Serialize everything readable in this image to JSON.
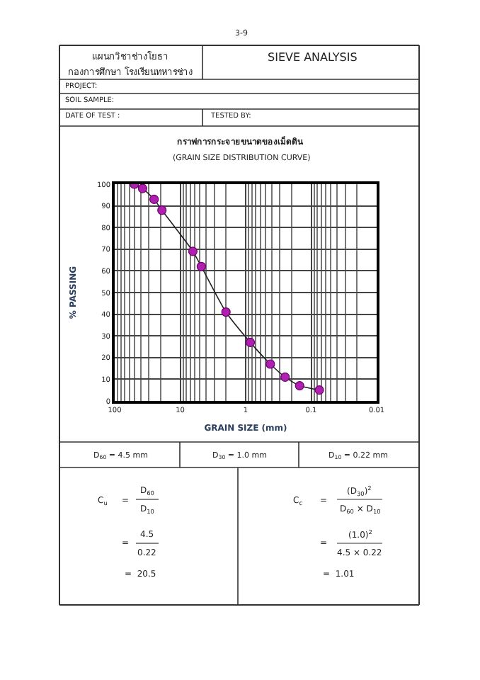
{
  "chart_data": {
    "type": "line",
    "title": "กราฟการกระจายขนาดของเม็ดดิน",
    "subtitle": "(GRAIN SIZE DISTRIBUTION CURVE)",
    "xlabel": "GRAIN SIZE (mm)",
    "ylabel": "% PASSING",
    "x": [
      50,
      37.5,
      25,
      19,
      6.4,
      4.75,
      2.0,
      0.85,
      0.42,
      0.25,
      0.15,
      0.075
    ],
    "series": [
      {
        "color": "#b020b0",
        "values": [
          100,
          98,
          93,
          88,
          69,
          62,
          41,
          27,
          17,
          11,
          7,
          5
        ]
      }
    ],
    "log": "x",
    "xlim": [
      100,
      0.01
    ],
    "xticks": [
      100,
      10,
      1,
      0.1,
      0.01
    ],
    "ylim": [
      0,
      100
    ],
    "yticks": [
      0,
      10,
      20,
      30,
      40,
      50,
      60,
      70,
      80,
      90,
      100
    ],
    "grid": true,
    "legend": false,
    "marker": "circle",
    "line_style": "solid",
    "annotations": [
      "3-9",
      "แผนกวิชาช่างโยธา",
      "กองการศึกษา โรงเรียนทหารช่าง",
      "SIEVE ANALYSIS",
      "PROJECT:",
      "SOIL SAMPLE:",
      "DATE OF TEST :",
      "TESTED BY:",
      "D$_{60}$ = 4.5 mm",
      "D$_{30}$ = 1.0 mm",
      "D$_{10}$ = 0.22 mm",
      "C$_{u}$",
      "=",
      "D$_{60}$",
      "D$_{10}$",
      "=",
      "4.5",
      "0.22",
      "=  20.5",
      "C$_{c}$",
      "=",
      "(D$_{30}$)$^{2}$",
      "D$_{60}$ × D$_{10}$",
      "=",
      "(1.0)$^{2}$",
      "4.5 × 0.22",
      "=  1.01"
    ]
  }
}
